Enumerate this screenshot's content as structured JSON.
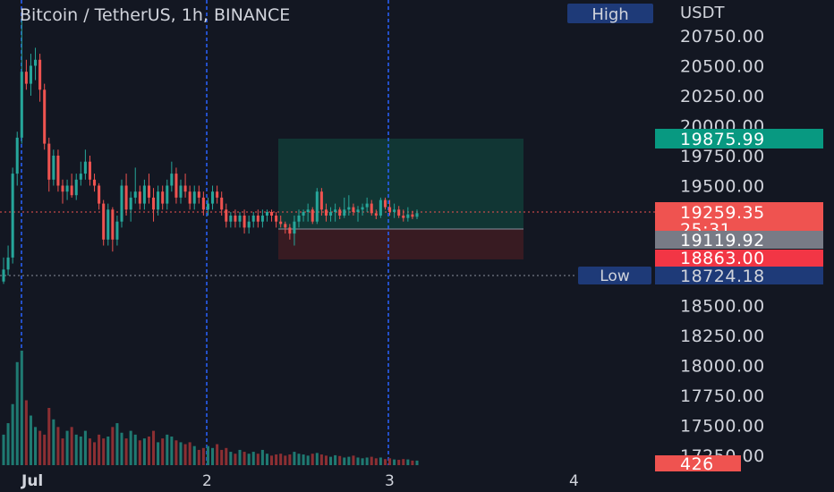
{
  "header": {
    "title": "Bitcoin / TetherUS, 1h, BINANCE",
    "high_badge": "High",
    "currency": "USDT"
  },
  "price_axis": {
    "ticks": [
      "20750.00",
      "20500.00",
      "20250.00",
      "20000.00",
      "19750.00",
      "19500.00",
      "19250.00",
      "18500.00",
      "18250.00",
      "18000.00",
      "17750.00",
      "17500.00",
      "17250.00"
    ],
    "tick_values": [
      20750,
      20500,
      20250,
      20000,
      19750,
      19500,
      19250,
      18500,
      18250,
      18000,
      17750,
      17500,
      17250
    ]
  },
  "labels": {
    "take_profit": "19875.99",
    "current_price": "19259.35",
    "countdown": "25:31",
    "entry": "19119.92",
    "stop_loss": "18863.00",
    "low_badge": "Low",
    "low_value": "18724.18",
    "volume_value": "426"
  },
  "time_axis": {
    "labels": [
      "Jul",
      "2",
      "3",
      "4"
    ]
  },
  "colors": {
    "background": "#131722",
    "up": "#26a69a",
    "down": "#ef5350",
    "up_volume": "#1f7a72",
    "down_volume": "#8c2f33",
    "session_line": "#2962ff",
    "badge_bg": "#1e3a78",
    "profit_zone": "#123a36",
    "loss_zone": "#3d1c22"
  },
  "chart_data": {
    "type": "candlestick",
    "title": "Bitcoin / TetherUS, 1h, BINANCE",
    "ylabel": "USDT",
    "ylim": [
      17150,
      20950
    ],
    "x_labels": [
      "Jul",
      "2",
      "3",
      "4"
    ],
    "high": 20750,
    "low": 18724.18,
    "position": {
      "take_profit": 19875.99,
      "entry": 19119.92,
      "stop_loss": 18863.0
    },
    "current_price": 19259.35,
    "ohlc": [
      [
        18700,
        18900,
        18680,
        18800
      ],
      [
        18800,
        19000,
        18750,
        18900
      ],
      [
        18900,
        19650,
        18850,
        19600
      ],
      [
        19600,
        19950,
        19500,
        19900
      ],
      [
        19900,
        20900,
        19850,
        20450
      ],
      [
        20450,
        20550,
        20300,
        20350
      ],
      [
        20350,
        20600,
        20250,
        20500
      ],
      [
        20500,
        20650,
        20380,
        20550
      ],
      [
        20550,
        20600,
        20200,
        20300
      ],
      [
        20300,
        20350,
        19800,
        19850
      ],
      [
        19850,
        19900,
        19450,
        19550
      ],
      [
        19550,
        19800,
        19500,
        19750
      ],
      [
        19750,
        19800,
        19450,
        19500
      ],
      [
        19500,
        19550,
        19350,
        19450
      ],
      [
        19450,
        19550,
        19380,
        19500
      ],
      [
        19500,
        19600,
        19400,
        19420
      ],
      [
        19420,
        19600,
        19380,
        19550
      ],
      [
        19550,
        19700,
        19500,
        19600
      ],
      [
        19600,
        19800,
        19550,
        19700
      ],
      [
        19700,
        19750,
        19500,
        19550
      ],
      [
        19550,
        19600,
        19450,
        19500
      ],
      [
        19500,
        19520,
        19300,
        19350
      ],
      [
        19350,
        19380,
        19000,
        19050
      ],
      [
        19050,
        19350,
        19000,
        19300
      ],
      [
        19300,
        19320,
        18950,
        19050
      ],
      [
        19050,
        19250,
        19000,
        19200
      ],
      [
        19200,
        19550,
        19150,
        19500
      ],
      [
        19500,
        19600,
        19250,
        19300
      ],
      [
        19300,
        19450,
        19200,
        19400
      ],
      [
        19400,
        19650,
        19350,
        19450
      ],
      [
        19450,
        19500,
        19300,
        19350
      ],
      [
        19350,
        19550,
        19300,
        19500
      ],
      [
        19500,
        19600,
        19350,
        19400
      ],
      [
        19400,
        19480,
        19200,
        19300
      ],
      [
        19300,
        19500,
        19250,
        19450
      ],
      [
        19450,
        19500,
        19300,
        19350
      ],
      [
        19350,
        19550,
        19300,
        19500
      ],
      [
        19500,
        19700,
        19450,
        19600
      ],
      [
        19600,
        19650,
        19350,
        19400
      ],
      [
        19400,
        19550,
        19350,
        19500
      ],
      [
        19500,
        19600,
        19400,
        19450
      ],
      [
        19450,
        19500,
        19300,
        19350
      ],
      [
        19350,
        19500,
        19300,
        19450
      ],
      [
        19450,
        19500,
        19350,
        19400
      ],
      [
        19400,
        19450,
        19250,
        19300
      ],
      [
        19300,
        19400,
        19250,
        19350
      ],
      [
        19350,
        19500,
        19300,
        19450
      ],
      [
        19450,
        19500,
        19350,
        19400
      ],
      [
        19400,
        19450,
        19250,
        19300
      ],
      [
        19300,
        19350,
        19150,
        19200
      ],
      [
        19200,
        19280,
        19150,
        19250
      ],
      [
        19250,
        19300,
        19150,
        19200
      ],
      [
        19200,
        19280,
        19150,
        19250
      ],
      [
        19250,
        19300,
        19100,
        19150
      ],
      [
        19150,
        19250,
        19100,
        19200
      ],
      [
        19200,
        19280,
        19150,
        19250
      ],
      [
        19250,
        19300,
        19150,
        19200
      ],
      [
        19200,
        19300,
        19150,
        19250
      ],
      [
        19250,
        19300,
        19200,
        19280
      ],
      [
        19280,
        19300,
        19200,
        19250
      ],
      [
        19250,
        19280,
        19150,
        19200
      ],
      [
        19200,
        19250,
        19150,
        19180
      ],
      [
        19180,
        19200,
        19100,
        19150
      ],
      [
        19150,
        19180,
        19050,
        19100
      ],
      [
        19100,
        19250,
        19000,
        19200
      ],
      [
        19200,
        19300,
        19150,
        19250
      ],
      [
        19250,
        19300,
        19200,
        19280
      ],
      [
        19280,
        19350,
        19200,
        19300
      ],
      [
        19300,
        19320,
        19180,
        19200
      ],
      [
        19200,
        19480,
        19180,
        19450
      ],
      [
        19450,
        19480,
        19250,
        19300
      ],
      [
        19300,
        19350,
        19200,
        19250
      ],
      [
        19250,
        19320,
        19200,
        19280
      ],
      [
        19280,
        19350,
        19200,
        19300
      ],
      [
        19300,
        19320,
        19220,
        19250
      ],
      [
        19250,
        19400,
        19230,
        19300
      ],
      [
        19300,
        19420,
        19250,
        19320
      ],
      [
        19320,
        19350,
        19250,
        19280
      ],
      [
        19280,
        19330,
        19200,
        19300
      ],
      [
        19300,
        19350,
        19250,
        19320
      ],
      [
        19320,
        19400,
        19280,
        19350
      ],
      [
        19350,
        19380,
        19250,
        19270
      ],
      [
        19270,
        19300,
        19220,
        19250
      ],
      [
        19250,
        19400,
        19230,
        19380
      ],
      [
        19380,
        19400,
        19300,
        19320
      ],
      [
        19320,
        19380,
        19250,
        19280
      ],
      [
        19280,
        19350,
        19230,
        19300
      ],
      [
        19300,
        19330,
        19230,
        19250
      ],
      [
        19250,
        19300,
        19200,
        19230
      ],
      [
        19230,
        19320,
        19200,
        19260
      ],
      [
        19260,
        19290,
        19220,
        19240
      ],
      [
        19240,
        19300,
        19220,
        19270
      ]
    ],
    "volume": [
      80,
      110,
      160,
      270,
      300,
      170,
      130,
      100,
      90,
      80,
      150,
      120,
      100,
      70,
      90,
      100,
      80,
      75,
      90,
      70,
      60,
      80,
      70,
      75,
      100,
      110,
      85,
      70,
      90,
      80,
      65,
      70,
      75,
      90,
      60,
      70,
      80,
      75,
      65,
      60,
      55,
      60,
      50,
      40,
      45,
      50,
      45,
      55,
      40,
      45,
      35,
      30,
      40,
      35,
      30,
      35,
      30,
      40,
      30,
      25,
      28,
      30,
      25,
      28,
      35,
      30,
      28,
      25,
      30,
      32,
      28,
      25,
      22,
      26,
      24,
      20,
      22,
      25,
      20,
      18,
      20,
      22,
      18,
      20,
      16,
      18,
      15,
      14,
      16,
      15,
      12,
      12
    ]
  }
}
